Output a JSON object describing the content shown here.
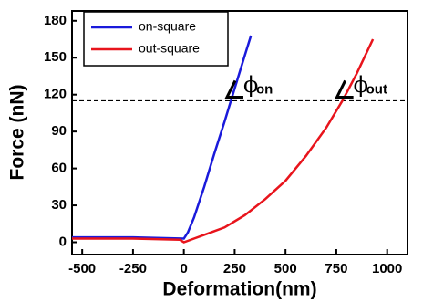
{
  "chart_data": {
    "type": "line",
    "x_label": "Deformation(nm)",
    "y_label": "Force (nN)",
    "xlim": [
      -550,
      1100
    ],
    "ylim": [
      -10,
      188
    ],
    "xticks": [
      -500,
      -250,
      0,
      250,
      500,
      750,
      1000
    ],
    "yticks": [
      0,
      30,
      60,
      90,
      120,
      150,
      180
    ],
    "hline": 115,
    "legend": "upper left",
    "series": [
      {
        "name": "on-square",
        "color": "#1a1adb",
        "x": [
          -550,
          -250,
          0,
          20,
          50,
          100,
          150,
          200,
          250,
          300,
          330
        ],
        "values": [
          4,
          4,
          3,
          8,
          20,
          45,
          72,
          98,
          125,
          152,
          168
        ]
      },
      {
        "name": "out-square",
        "color": "#e8141c",
        "x": [
          -550,
          -250,
          -20,
          0,
          50,
          100,
          200,
          300,
          400,
          500,
          600,
          700,
          780,
          850,
          930
        ],
        "values": [
          3,
          3,
          2,
          0,
          3,
          6,
          12,
          22,
          35,
          50,
          70,
          93,
          115,
          137,
          165
        ]
      }
    ],
    "annotations": [
      {
        "symbol": "ϕ",
        "sub": "on",
        "x": 239
      },
      {
        "symbol": "ϕ",
        "sub": "out",
        "x": 780
      }
    ]
  }
}
